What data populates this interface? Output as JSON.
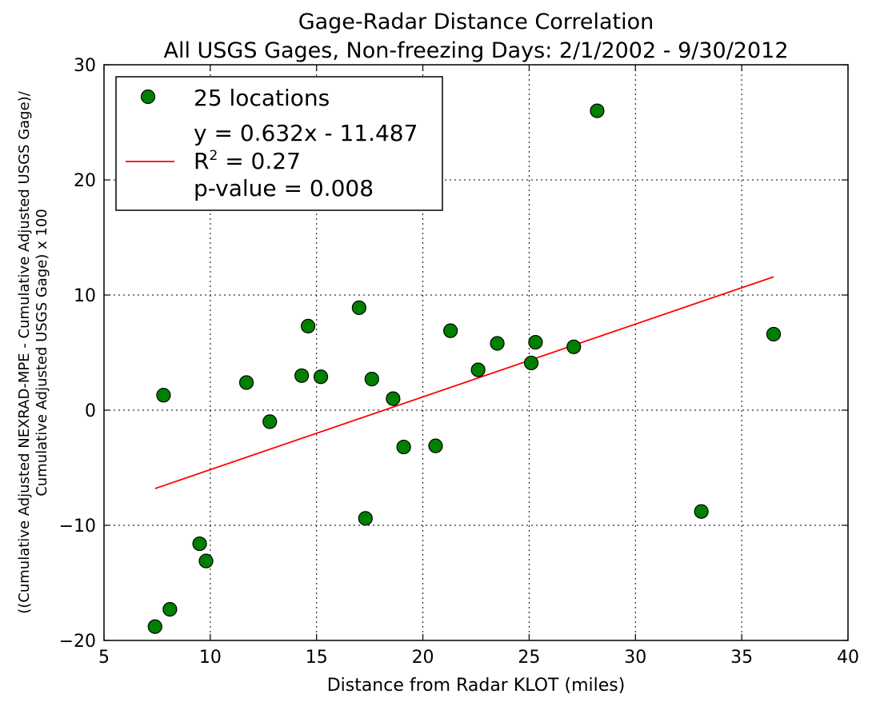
{
  "chart_data": {
    "type": "scatter",
    "title": "Gage-Radar Distance Correlation",
    "subtitle": "All USGS Gages, Non-freezing Days: 2/1/2002 - 9/30/2012",
    "xlabel": "Distance from Radar KLOT (miles)",
    "ylabel_line1": "((Cumulative Adjusted NEXRAD-MPE - Cumulative Adjusted USGS Gage)/",
    "ylabel_line2": "Cumulative Adjusted USGS Gage) x 100",
    "xlim": [
      5,
      40
    ],
    "ylim": [
      -20,
      30
    ],
    "xticks": [
      5,
      10,
      15,
      20,
      25,
      30,
      35,
      40
    ],
    "yticks": [
      -20,
      -10,
      0,
      10,
      20,
      30
    ],
    "xtick_labels": [
      "5",
      "10",
      "15",
      "20",
      "25",
      "30",
      "35",
      "40"
    ],
    "ytick_labels": [
      "−20",
      "−10",
      "0",
      "10",
      "20",
      "30"
    ],
    "grid": true,
    "legend_placement": "top-left",
    "legend": {
      "points_label": "25 locations",
      "fit_line1": "y = 0.632x - 11.487",
      "fit_line2_prefix": "R",
      "fit_line2_sup": "2",
      "fit_line2_suffix": " = 0.27",
      "fit_line3": "p-value = 0.008"
    },
    "series": [
      {
        "name": "25 locations",
        "marker_color": "#008000",
        "points": [
          {
            "x": 7.4,
            "y": -18.8
          },
          {
            "x": 7.8,
            "y": 1.3
          },
          {
            "x": 8.1,
            "y": -17.3
          },
          {
            "x": 9.5,
            "y": -11.6
          },
          {
            "x": 9.8,
            "y": -13.1
          },
          {
            "x": 11.7,
            "y": 2.4
          },
          {
            "x": 12.8,
            "y": -1.0
          },
          {
            "x": 14.3,
            "y": 3.0
          },
          {
            "x": 14.6,
            "y": 7.3
          },
          {
            "x": 15.2,
            "y": 2.9
          },
          {
            "x": 17.0,
            "y": 8.9
          },
          {
            "x": 17.3,
            "y": -9.4
          },
          {
            "x": 17.6,
            "y": 2.7
          },
          {
            "x": 18.6,
            "y": 1.0
          },
          {
            "x": 19.1,
            "y": -3.2
          },
          {
            "x": 20.6,
            "y": -3.1
          },
          {
            "x": 21.3,
            "y": 6.9
          },
          {
            "x": 22.6,
            "y": 3.5
          },
          {
            "x": 23.5,
            "y": 5.8
          },
          {
            "x": 25.1,
            "y": 4.1
          },
          {
            "x": 25.3,
            "y": 5.9
          },
          {
            "x": 27.1,
            "y": 5.5
          },
          {
            "x": 28.2,
            "y": 26.0
          },
          {
            "x": 33.1,
            "y": -8.8
          },
          {
            "x": 36.5,
            "y": 6.6
          }
        ]
      }
    ],
    "fit_line": {
      "slope": 0.632,
      "intercept": -11.487,
      "x_start": 7.4,
      "x_end": 36.5,
      "color": "#ff0000"
    }
  }
}
